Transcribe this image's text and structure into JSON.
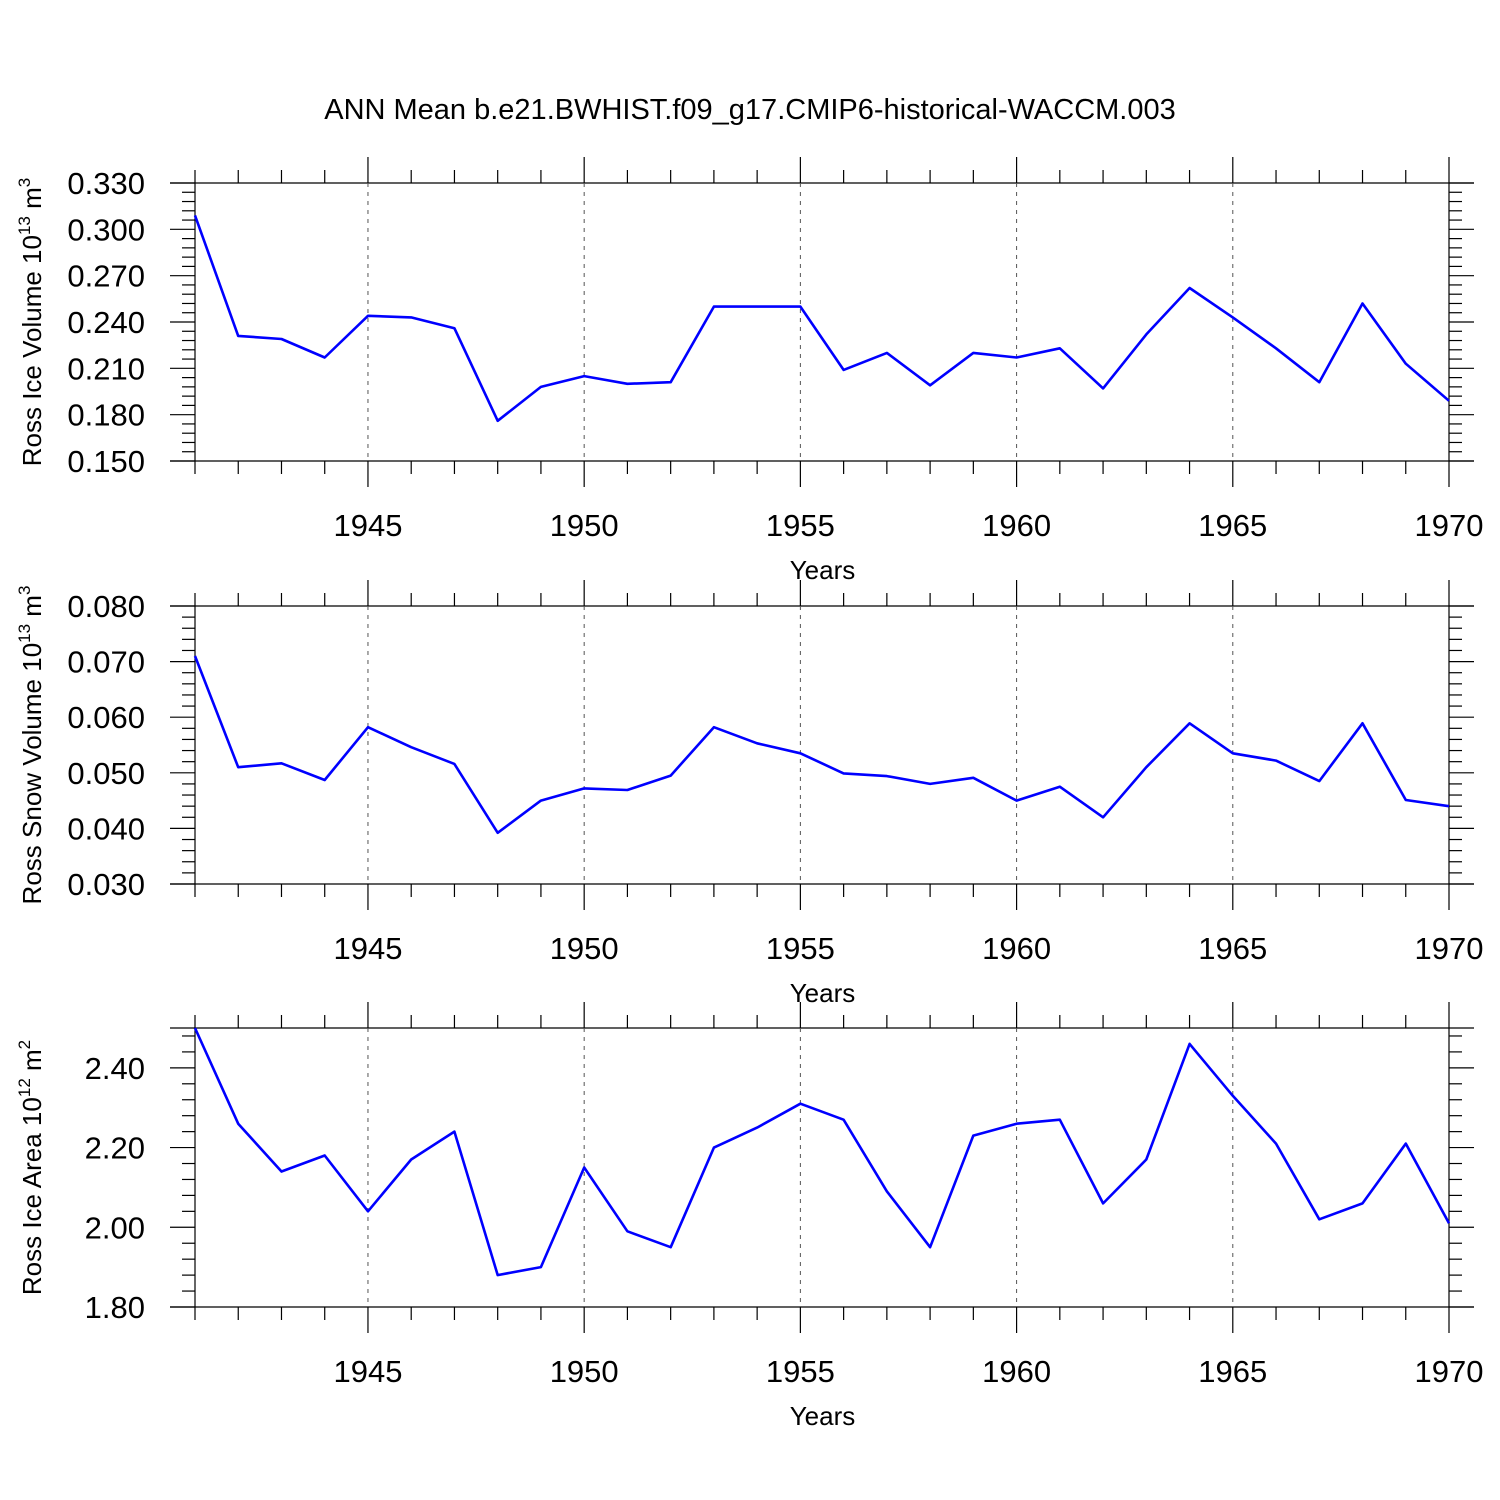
{
  "figure_title": "ANN Mean b.e21.BWHIST.f09_g17.CMIP6-historical-WACCM.003",
  "colors": {
    "series": "#0000ff",
    "axes": "#000000",
    "grid": "#555555"
  },
  "chart_data": [
    {
      "type": "line",
      "ylabel": {
        "base": "Ross Ice Volume 10",
        "exp": "13",
        "unit": " m",
        "unit_exp": "3"
      },
      "xlabel": "Years",
      "xlim": [
        1941,
        1970
      ],
      "ylim": [
        0.15,
        0.33
      ],
      "yticks": [
        "0.150",
        "0.180",
        "0.210",
        "0.240",
        "0.270",
        "0.300",
        "0.330"
      ],
      "xticks": [
        "1945",
        "1950",
        "1955",
        "1960",
        "1965",
        "1970"
      ],
      "grid": "dashed vertical lines at labelled years",
      "series": [
        {
          "x": [
            1941,
            1942,
            1943,
            1944,
            1945,
            1946,
            1947,
            1948,
            1949,
            1950,
            1951,
            1952,
            1953,
            1954,
            1955,
            1956,
            1957,
            1958,
            1959,
            1960,
            1961,
            1962,
            1963,
            1964,
            1965,
            1966,
            1967,
            1968,
            1969,
            1970
          ],
          "values": [
            0.309,
            0.231,
            0.229,
            0.217,
            0.244,
            0.243,
            0.236,
            0.176,
            0.198,
            0.205,
            0.2,
            0.201,
            0.25,
            0.25,
            0.25,
            0.209,
            0.22,
            0.199,
            0.22,
            0.217,
            0.223,
            0.197,
            0.232,
            0.262,
            0.243,
            0.223,
            0.201,
            0.252,
            0.213,
            0.189
          ]
        }
      ]
    },
    {
      "type": "line",
      "ylabel": {
        "base": "Ross Snow Volume 10",
        "exp": "13",
        "unit": " m",
        "unit_exp": "3"
      },
      "xlabel": "Years",
      "xlim": [
        1941,
        1970
      ],
      "ylim": [
        0.03,
        0.08
      ],
      "yticks": [
        "0.030",
        "0.040",
        "0.050",
        "0.060",
        "0.070",
        "0.080"
      ],
      "xticks": [
        "1945",
        "1950",
        "1955",
        "1960",
        "1965",
        "1970"
      ],
      "grid": "dashed vertical lines at labelled years",
      "series": [
        {
          "x": [
            1941,
            1942,
            1943,
            1944,
            1945,
            1946,
            1947,
            1948,
            1949,
            1950,
            1951,
            1952,
            1953,
            1954,
            1955,
            1956,
            1957,
            1958,
            1959,
            1960,
            1961,
            1962,
            1963,
            1964,
            1965,
            1966,
            1967,
            1968,
            1969,
            1970
          ],
          "values": [
            0.071,
            0.051,
            0.0517,
            0.0487,
            0.0582,
            0.0546,
            0.0516,
            0.0392,
            0.045,
            0.0472,
            0.0469,
            0.0495,
            0.0582,
            0.0553,
            0.0535,
            0.0499,
            0.0494,
            0.048,
            0.0491,
            0.045,
            0.0475,
            0.042,
            0.051,
            0.0589,
            0.0535,
            0.0522,
            0.0485,
            0.0589,
            0.0451,
            0.044
          ]
        }
      ]
    },
    {
      "type": "line",
      "ylabel": {
        "base": "Ross Ice Area 10",
        "exp": "12",
        "unit": " m",
        "unit_exp": "2"
      },
      "xlabel": "Years",
      "xlim": [
        1941,
        1970
      ],
      "ylim": [
        1.8,
        2.5
      ],
      "yticks": [
        "1.80",
        "2.00",
        "2.20",
        "2.40"
      ],
      "xticks": [
        "1945",
        "1950",
        "1955",
        "1960",
        "1965",
        "1970"
      ],
      "grid": "dashed vertical lines at labelled years",
      "series": [
        {
          "x": [
            1941,
            1942,
            1943,
            1944,
            1945,
            1946,
            1947,
            1948,
            1949,
            1950,
            1951,
            1952,
            1953,
            1954,
            1955,
            1956,
            1957,
            1958,
            1959,
            1960,
            1961,
            1962,
            1963,
            1964,
            1965,
            1966,
            1967,
            1968,
            1969,
            1970
          ],
          "values": [
            2.5,
            2.26,
            2.14,
            2.18,
            2.04,
            2.17,
            2.24,
            1.88,
            1.9,
            2.15,
            1.99,
            1.95,
            2.2,
            2.25,
            2.31,
            2.27,
            2.09,
            1.95,
            2.23,
            2.26,
            2.27,
            2.06,
            2.17,
            2.46,
            2.33,
            2.21,
            2.02,
            2.06,
            2.21,
            2.01
          ]
        }
      ]
    }
  ]
}
